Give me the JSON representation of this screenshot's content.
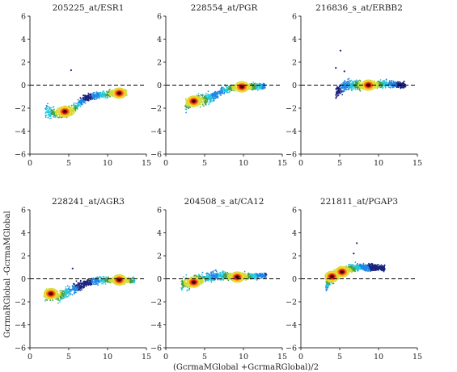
{
  "figure": {
    "ylabel": "GcrmaRGlobal -GcrmaMGlobal",
    "xlabel": "(GcrmaMGlobal +GcrmaRGlobal)/2"
  },
  "axes": {
    "xticks": [
      "0",
      "5",
      "10",
      "15"
    ],
    "yticks": [
      "6",
      "4",
      "2",
      "0",
      "−2",
      "−4",
      "−6"
    ]
  },
  "colors": {
    "sparse": "#1a237e",
    "scale": [
      "#1a237e",
      "#1e88e5",
      "#26c6da",
      "#43a047",
      "#cddc39",
      "#fdd835",
      "#fb8c00",
      "#e53935",
      "#8b0000",
      "#1a0000"
    ]
  },
  "chart_data": [
    {
      "type": "scatter",
      "title": "205225_at/ESR1",
      "xlim": [
        0,
        15
      ],
      "ylim": [
        -6,
        6
      ],
      "reference_line_y": 0,
      "segments": [
        [
          [
            2,
            -2.2
          ],
          [
            3.5,
            -2.5
          ],
          [
            5.5,
            -2.2
          ],
          [
            7,
            -1.2
          ],
          [
            8.5,
            -0.9
          ],
          [
            10.5,
            -0.7
          ],
          [
            12.5,
            -0.7
          ]
        ]
      ],
      "dense_points": [
        [
          4.5,
          -2.3
        ],
        [
          11.5,
          -0.7
        ]
      ],
      "outliers": [
        [
          5.3,
          1.3
        ]
      ]
    },
    {
      "type": "scatter",
      "title": "228554_at/PGR",
      "xlim": [
        0,
        15
      ],
      "ylim": [
        -6,
        6
      ],
      "reference_line_y": 0,
      "segments": [
        [
          [
            2.5,
            -1.8
          ],
          [
            3.5,
            -1.4
          ],
          [
            4.5,
            -1.3
          ],
          [
            5.8,
            -1.1
          ],
          [
            7,
            -0.6
          ],
          [
            8.5,
            -0.2
          ],
          [
            10.5,
            -0.1
          ],
          [
            12.8,
            -0.1
          ]
        ]
      ],
      "dense_points": [
        [
          3.6,
          -1.4
        ],
        [
          9.8,
          -0.15
        ]
      ],
      "outliers": []
    },
    {
      "type": "scatter",
      "title": "216836_s_at/ERBB2",
      "xlim": [
        0,
        15
      ],
      "ylim": [
        -6,
        6
      ],
      "reference_line_y": 0,
      "segments": [
        [
          [
            4.5,
            -0.6
          ],
          [
            6,
            0.0
          ],
          [
            8.5,
            0.0
          ],
          [
            11,
            0.1
          ],
          [
            13.5,
            0.0
          ]
        ]
      ],
      "dense_points": [
        [
          8.7,
          0.0
        ]
      ],
      "outliers": [
        [
          5.1,
          3.0
        ],
        [
          4.5,
          1.5
        ],
        [
          5.6,
          1.2
        ]
      ]
    },
    {
      "type": "scatter",
      "title": "228241_at/AGR3",
      "xlim": [
        0,
        15
      ],
      "ylim": [
        -6,
        6
      ],
      "reference_line_y": 0,
      "segments": [
        [
          [
            1.8,
            -1.5
          ],
          [
            2.7,
            -1.3
          ],
          [
            3.8,
            -1.5
          ],
          [
            5,
            -1.1
          ],
          [
            6.5,
            -0.6
          ],
          [
            8,
            -0.2
          ],
          [
            10,
            -0.1
          ],
          [
            13.5,
            -0.15
          ]
        ]
      ],
      "dense_points": [
        [
          2.7,
          -1.3
        ],
        [
          11.5,
          -0.1
        ]
      ],
      "outliers": [
        [
          5.5,
          0.9
        ]
      ]
    },
    {
      "type": "scatter",
      "title": "204508_s_at/CA12",
      "xlim": [
        0,
        15
      ],
      "ylim": [
        -6,
        6
      ],
      "reference_line_y": 0,
      "segments": [
        [
          [
            2,
            -0.5
          ],
          [
            3.5,
            -0.3
          ],
          [
            5,
            0.1
          ],
          [
            7,
            0.3
          ],
          [
            9,
            0.2
          ],
          [
            11,
            0.2
          ],
          [
            13,
            0.3
          ]
        ]
      ],
      "dense_points": [
        [
          3.6,
          -0.3
        ],
        [
          9.2,
          0.15
        ]
      ],
      "outliers": []
    },
    {
      "type": "scatter",
      "title": "221811_at/PGAP3",
      "xlim": [
        0,
        15
      ],
      "ylim": [
        -6,
        6
      ],
      "reference_line_y": 0,
      "segments": [
        [
          [
            3.2,
            -0.5
          ],
          [
            4,
            0.1
          ],
          [
            4.6,
            0.4
          ],
          [
            5.2,
            0.7
          ],
          [
            7,
            1.0
          ],
          [
            9,
            1.0
          ],
          [
            10.8,
            0.9
          ]
        ]
      ],
      "dense_points": [
        [
          4.0,
          0.2
        ],
        [
          5.3,
          0.6
        ]
      ],
      "outliers": [
        [
          7.2,
          3.1
        ],
        [
          6.8,
          2.2
        ]
      ]
    }
  ]
}
